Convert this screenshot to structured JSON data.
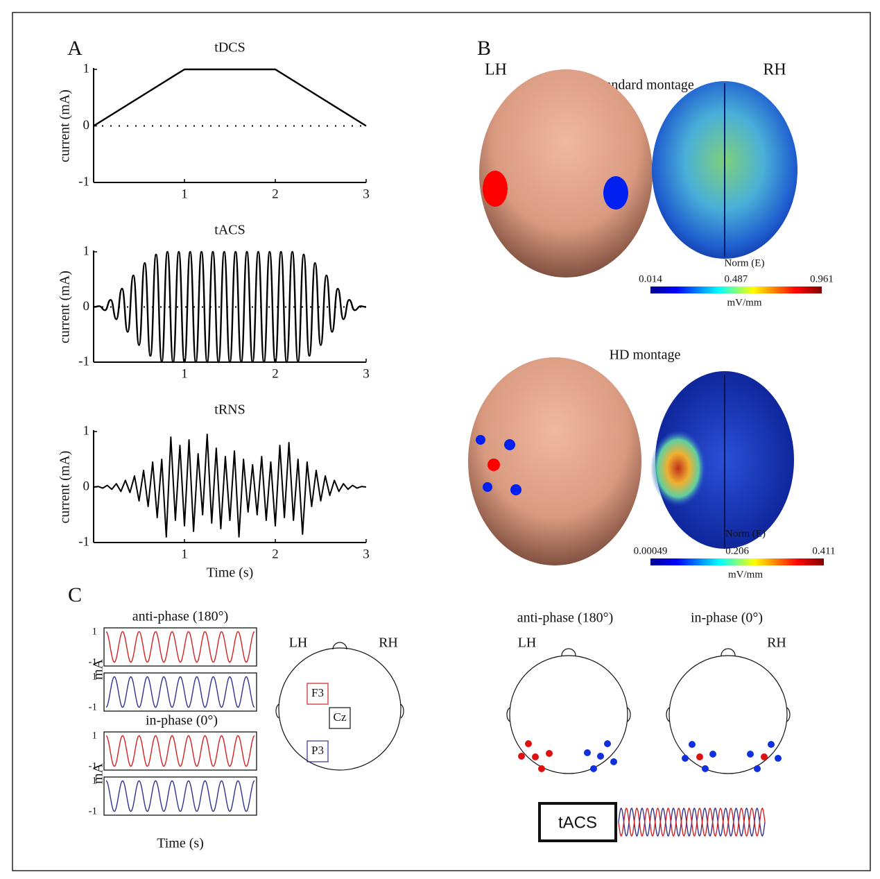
{
  "panel_labels": [
    "A",
    "B",
    "C"
  ],
  "chart_data": [
    {
      "type": "line",
      "title": "tDCS",
      "ylabel": "current (mA)",
      "x": [
        0,
        1,
        2,
        3
      ],
      "values": [
        0,
        1,
        1,
        0
      ],
      "xlim": [
        0,
        3
      ],
      "ylim": [
        -1,
        1
      ],
      "xticks": [
        1,
        2,
        3
      ],
      "yticks": [
        -1,
        0,
        1
      ],
      "zero_line": true,
      "color": "#000000"
    },
    {
      "type": "line",
      "title": "tACS",
      "ylabel": "current (mA)",
      "x": [
        0,
        0.0625,
        0.125,
        0.1875,
        0.25,
        0.3125,
        0.375,
        0.4375,
        0.5,
        0.5625,
        0.625,
        0.6875,
        0.75,
        0.8125,
        0.875,
        0.9375,
        1,
        1.0625,
        1.125,
        1.1875,
        1.25,
        1.3125,
        1.375,
        1.4375,
        1.5,
        1.5625,
        1.625,
        1.6875,
        1.75,
        1.8125,
        1.875,
        1.9375,
        2,
        2.0625,
        2.125,
        2.1875,
        2.25,
        2.3125,
        2.375,
        2.4375,
        2.5,
        2.5625,
        2.625,
        2.6875,
        2.75,
        2.8125,
        2.875,
        2.9375,
        3
      ],
      "values": [
        0,
        0.015,
        -0.059,
        0.13,
        -0.222,
        0.332,
        -0.451,
        0.573,
        -0.691,
        0.798,
        -0.886,
        0.952,
        -0.99,
        1,
        -1,
        1,
        -1,
        1,
        -1,
        1,
        -1,
        1,
        -1,
        1,
        -1,
        1,
        -1,
        1,
        -1,
        1,
        -1,
        1,
        -1,
        1,
        -1,
        1,
        -0.99,
        0.952,
        -0.886,
        0.798,
        -0.691,
        0.573,
        -0.451,
        0.332,
        -0.222,
        0.13,
        -0.059,
        0.015,
        0
      ],
      "xlim": [
        0,
        3
      ],
      "ylim": [
        -1,
        1
      ],
      "xticks": [
        1,
        2,
        3
      ],
      "yticks": [
        -1,
        0,
        1
      ],
      "zero_line": true,
      "color": "#000000"
    },
    {
      "type": "line",
      "title": "tRNS",
      "ylabel": "current (mA)",
      "xlabel": "Time (s)",
      "x": [
        0,
        0.05,
        0.1,
        0.15,
        0.2,
        0.25,
        0.3,
        0.35,
        0.4,
        0.45,
        0.5,
        0.55,
        0.6,
        0.65,
        0.7,
        0.75,
        0.8,
        0.85,
        0.9,
        0.95,
        1,
        1.05,
        1.1,
        1.15,
        1.2,
        1.25,
        1.3,
        1.35,
        1.4,
        1.45,
        1.5,
        1.55,
        1.6,
        1.65,
        1.7,
        1.75,
        1.8,
        1.85,
        1.9,
        1.95,
        2,
        2.05,
        2.1,
        2.15,
        2.2,
        2.25,
        2.3,
        2.35,
        2.4,
        2.45,
        2.5,
        2.55,
        2.6,
        2.65,
        2.7,
        2.75,
        2.8,
        2.85,
        2.9,
        2.95,
        3
      ],
      "values": [
        0,
        0.01,
        -0.02,
        0.03,
        -0.04,
        0.06,
        -0.08,
        0.12,
        -0.1,
        0.2,
        -0.25,
        0.3,
        -0.35,
        0.45,
        -0.55,
        0.5,
        -0.9,
        0.9,
        -0.6,
        0.75,
        -0.7,
        0.85,
        -0.8,
        0.6,
        -0.5,
        0.95,
        -0.65,
        0.7,
        -0.75,
        0.55,
        -0.6,
        0.65,
        -0.9,
        0.5,
        -0.45,
        0.4,
        -0.5,
        0.55,
        -0.6,
        0.45,
        -0.7,
        0.75,
        -0.55,
        0.8,
        -0.6,
        0.5,
        -0.85,
        0.45,
        -0.35,
        0.3,
        -0.25,
        0.2,
        -0.15,
        0.12,
        -0.08,
        0.06,
        -0.04,
        0.03,
        -0.02,
        0.01,
        0
      ],
      "xlim": [
        0,
        3
      ],
      "ylim": [
        -1,
        1
      ],
      "xticks": [
        1,
        2,
        3
      ],
      "yticks": [
        -1,
        0,
        1
      ],
      "color": "#000000"
    }
  ],
  "panel_b": {
    "hemispheres": [
      "LH",
      "RH"
    ],
    "montages": [
      {
        "title": "standard montage",
        "colorbar": {
          "title": "Norm (E)",
          "range": [
            0.014,
            0.961
          ],
          "ticks": [
            0.014,
            0.487,
            0.961
          ],
          "unit": "mV/mm"
        }
      },
      {
        "title": "HD montage",
        "colorbar": {
          "title": "Norm (E)",
          "range": [
            0.00049,
            0.411
          ],
          "ticks": [
            0.00049,
            0.206,
            0.411
          ],
          "unit": "mV/mm"
        }
      }
    ]
  },
  "panel_c": {
    "waveforms": [
      "anti-phase (180°)",
      "in-phase (0°)"
    ],
    "ylabel": "mA",
    "yticks": [
      1,
      -1
    ],
    "xlabel": "Time (s)",
    "hemispheres": [
      "LH",
      "RH"
    ],
    "electrodes": [
      "F3",
      "Cz",
      "P3"
    ],
    "montages": [
      "anti-phase (180°)",
      "in-phase (0°)"
    ],
    "stimulator": "tACS"
  }
}
